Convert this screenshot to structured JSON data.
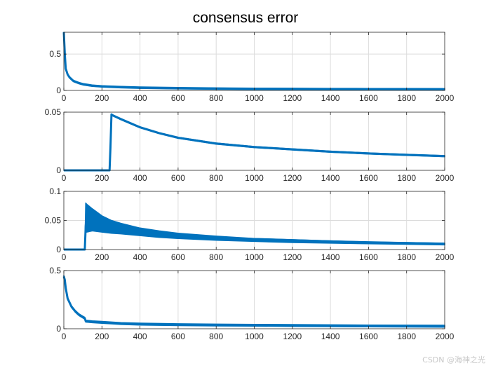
{
  "figure": {
    "title": "consensus error",
    "watermark": "CSDN @海神之光"
  },
  "colors": {
    "line": "#0072BD",
    "grid": "#dcdcdc",
    "axis": "#262626"
  },
  "chart_data": [
    {
      "type": "line",
      "title": "consensus error",
      "xlim": [
        0,
        2000
      ],
      "ylim": [
        0,
        0.8
      ],
      "xticks": [
        0,
        200,
        400,
        600,
        800,
        1000,
        1200,
        1400,
        1600,
        1800,
        2000
      ],
      "yticks": [
        0,
        0.5
      ],
      "grid": true,
      "series": [
        {
          "x": [
            0,
            5,
            10,
            20,
            30,
            50,
            80,
            100,
            150,
            200,
            300,
            400,
            600,
            800,
            1000,
            1200,
            1400,
            1600,
            1800,
            2000
          ],
          "y": [
            0.8,
            0.5,
            0.3,
            0.22,
            0.18,
            0.13,
            0.1,
            0.085,
            0.065,
            0.055,
            0.045,
            0.038,
            0.03,
            0.025,
            0.022,
            0.02,
            0.018,
            0.017,
            0.016,
            0.015
          ],
          "band": 0.01
        }
      ]
    },
    {
      "type": "line",
      "xlim": [
        0,
        2000
      ],
      "ylim": [
        0,
        0.05
      ],
      "xticks": [
        0,
        200,
        400,
        600,
        800,
        1000,
        1200,
        1400,
        1600,
        1800,
        2000
      ],
      "yticks": [
        0,
        0.05
      ],
      "grid": true,
      "series": [
        {
          "x": [
            0,
            240,
            245,
            250,
            260,
            300,
            400,
            500,
            600,
            800,
            1000,
            1200,
            1400,
            1600,
            1800,
            2000
          ],
          "y": [
            0,
            0,
            0.02,
            0.048,
            0.047,
            0.044,
            0.037,
            0.032,
            0.028,
            0.023,
            0.02,
            0.018,
            0.016,
            0.0145,
            0.0133,
            0.0122
          ],
          "band": 0.0005
        }
      ]
    },
    {
      "type": "line",
      "xlim": [
        0,
        2000
      ],
      "ylim": [
        0,
        0.1
      ],
      "xticks": [
        0,
        200,
        400,
        600,
        800,
        1000,
        1200,
        1400,
        1600,
        1800,
        2000
      ],
      "yticks": [
        0,
        0.05,
        0.1
      ],
      "grid": true,
      "series": [
        {
          "x": [
            0,
            110,
            115,
            120,
            150,
            200,
            250,
            300,
            400,
            500,
            600,
            800,
            1000,
            1200,
            1400,
            1600,
            1800,
            2000
          ],
          "y": [
            0,
            0,
            0.04,
            0.06,
            0.055,
            0.048,
            0.043,
            0.039,
            0.033,
            0.029,
            0.026,
            0.021,
            0.018,
            0.016,
            0.014,
            0.0125,
            0.0112,
            0.01
          ],
          "band_upper": [
            0,
            0,
            0.08,
            0.078,
            0.07,
            0.058,
            0.05,
            0.045,
            0.037,
            0.032,
            0.028,
            0.023,
            0.019,
            0.017,
            0.015,
            0.013,
            0.012,
            0.011
          ],
          "band_lower": [
            0,
            0,
            0.03,
            0.03,
            0.032,
            0.03,
            0.028,
            0.027,
            0.024,
            0.021,
            0.019,
            0.016,
            0.014,
            0.012,
            0.011,
            0.01,
            0.009,
            0.008
          ]
        }
      ]
    },
    {
      "type": "line",
      "xlim": [
        0,
        2000
      ],
      "ylim": [
        0,
        0.5
      ],
      "xticks": [
        0,
        200,
        400,
        600,
        800,
        1000,
        1200,
        1400,
        1600,
        1800,
        2000
      ],
      "yticks": [
        0,
        0.5
      ],
      "grid": true,
      "series": [
        {
          "x": [
            0,
            5,
            10,
            20,
            40,
            60,
            80,
            100,
            110,
            115,
            150,
            200,
            250,
            300,
            400,
            600,
            800,
            1000,
            1200,
            1400,
            1600,
            1800,
            2000
          ],
          "y": [
            0.45,
            0.42,
            0.35,
            0.26,
            0.19,
            0.15,
            0.12,
            0.1,
            0.09,
            0.065,
            0.06,
            0.055,
            0.05,
            0.045,
            0.04,
            0.035,
            0.032,
            0.03,
            0.028,
            0.026,
            0.024,
            0.023,
            0.022
          ],
          "band": 0.008
        }
      ]
    }
  ]
}
